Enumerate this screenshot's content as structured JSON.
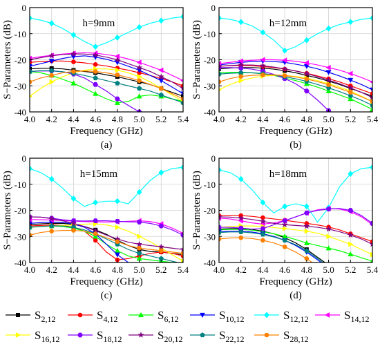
{
  "figure": {
    "ylabel": "S−Parameters (dB)",
    "xlabel": "Frequency (GHz)"
  },
  "legend": [
    {
      "base": "S",
      "sub": "2,12",
      "color": "#000000",
      "marker": "square"
    },
    {
      "base": "S",
      "sub": "4,12",
      "color": "#ff0000",
      "marker": "circle"
    },
    {
      "base": "S",
      "sub": "6,12",
      "color": "#00ff00",
      "marker": "triangle-up"
    },
    {
      "base": "S",
      "sub": "10,12",
      "color": "#0000ff",
      "marker": "triangle-down"
    },
    {
      "base": "S",
      "sub": "12,12",
      "color": "#00ffff",
      "marker": "diamond"
    },
    {
      "base": "S",
      "sub": "14,12",
      "color": "#ff00ff",
      "marker": "triangle-left"
    },
    {
      "base": "S",
      "sub": "16,12",
      "color": "#ffff00",
      "marker": "triangle-right"
    },
    {
      "base": "S",
      "sub": "18,12",
      "color": "#8000ff",
      "marker": "hexagon"
    },
    {
      "base": "S",
      "sub": "20,12",
      "color": "#800080",
      "marker": "star"
    },
    {
      "base": "S",
      "sub": "22,12",
      "color": "#008080",
      "marker": "pentagon"
    },
    {
      "base": "S",
      "sub": "28,12",
      "color": "#ff8000",
      "marker": "circle"
    }
  ],
  "chart_data": [
    {
      "type": "line",
      "panel": "(a)",
      "annotation": "h=9mm",
      "xlabel": "Frequency (GHz)",
      "ylabel": "S−Parameters (dB)",
      "xlim": [
        4.0,
        5.4
      ],
      "ylim": [
        -40,
        0
      ],
      "grid": true,
      "xticks": [
        4.0,
        4.2,
        4.4,
        4.6,
        4.8,
        5.0,
        5.2,
        5.4
      ],
      "yticks": [
        0,
        -10,
        -20,
        -30,
        -40
      ],
      "x": [
        4.0,
        4.1,
        4.2,
        4.3,
        4.4,
        4.5,
        4.6,
        4.7,
        4.8,
        4.9,
        5.0,
        5.1,
        5.2,
        5.3,
        5.4
      ],
      "series": [
        {
          "name": "S2,12",
          "values": [
            -23.5,
            -23.3,
            -23.3,
            -23.5,
            -24,
            -24.5,
            -25,
            -25.8,
            -26.5,
            -27.5,
            -28.5,
            -29.5,
            -31,
            -32.5,
            -34
          ]
        },
        {
          "name": "S4,12",
          "values": [
            -21,
            -20.7,
            -20.5,
            -20.5,
            -20.8,
            -21.2,
            -21.8,
            -22.4,
            -23.2,
            -24,
            -25,
            -26,
            -27.2,
            -28.5,
            -30
          ]
        },
        {
          "name": "S6,12",
          "values": [
            -24.5,
            -25,
            -26,
            -27.5,
            -29,
            -31,
            -33,
            -35,
            -36.5,
            -36,
            -34,
            -33.5,
            -34,
            -35,
            -36
          ]
        },
        {
          "name": "S10,12",
          "values": [
            -22.5,
            -21.5,
            -20.5,
            -19.5,
            -18.8,
            -18.5,
            -19,
            -19.8,
            -21,
            -22.5,
            -24,
            -26,
            -28,
            -30.5,
            -33
          ]
        },
        {
          "name": "S12,12",
          "values": [
            -4,
            -4.8,
            -6,
            -8,
            -10.5,
            -13,
            -15,
            -13.5,
            -11.5,
            -9.5,
            -7.5,
            -6,
            -5,
            -4,
            -3.5
          ]
        },
        {
          "name": "S14,12",
          "values": [
            -19.5,
            -18.8,
            -18.3,
            -17.8,
            -17.5,
            -17.3,
            -17.5,
            -18,
            -18.7,
            -19.7,
            -21,
            -22.5,
            -24,
            -26,
            -28
          ]
        },
        {
          "name": "S16,12",
          "values": [
            -34,
            -31,
            -28.5,
            -26.5,
            -25,
            -24,
            -23.5,
            -23.5,
            -24,
            -25,
            -26.5,
            -28.5,
            -31,
            -33.5,
            -36
          ]
        },
        {
          "name": "S18,12",
          "values": [
            -24.5,
            -24.3,
            -24.3,
            -24.6,
            -25.5,
            -27,
            -29.5,
            -32,
            -35,
            -37.5,
            -40,
            -41,
            -41,
            -41,
            -41
          ]
        },
        {
          "name": "S20,12",
          "values": [
            -20,
            -19.2,
            -18.5,
            -18,
            -17.8,
            -17.8,
            -18.2,
            -19,
            -20,
            -21.5,
            -23,
            -24.5,
            -26.5,
            -28.5,
            -31
          ]
        },
        {
          "name": "S22,12",
          "values": [
            -24.5,
            -24.2,
            -24.2,
            -24.6,
            -25.2,
            -26,
            -27,
            -28,
            -29,
            -30,
            -31,
            -32,
            -33.5,
            -35,
            -36.5
          ]
        },
        {
          "name": "S28,12",
          "values": [
            -28.5,
            -27,
            -26,
            -25,
            -24.5,
            -24.3,
            -24.5,
            -25,
            -25.8,
            -26.8,
            -28,
            -29.5,
            -31,
            -33,
            -35
          ]
        }
      ]
    },
    {
      "type": "line",
      "panel": "(b)",
      "annotation": "h=12mm",
      "xlabel": "Frequency (GHz)",
      "ylabel": "S−Parameters (dB)",
      "xlim": [
        4.0,
        5.4
      ],
      "ylim": [
        -40,
        0
      ],
      "grid": true,
      "xticks": [
        4.0,
        4.2,
        4.4,
        4.6,
        4.8,
        5.0,
        5.2,
        5.4
      ],
      "yticks": [
        0,
        -10,
        -20,
        -30,
        -40
      ],
      "x": [
        4.0,
        4.1,
        4.2,
        4.3,
        4.4,
        4.5,
        4.6,
        4.7,
        4.8,
        4.9,
        5.0,
        5.1,
        5.2,
        5.3,
        5.4
      ],
      "series": [
        {
          "name": "S2,12",
          "values": [
            -23.5,
            -23.2,
            -23,
            -23,
            -23.2,
            -23.6,
            -24.2,
            -25,
            -26,
            -27,
            -28.2,
            -29.5,
            -31,
            -32.5,
            -34
          ]
        },
        {
          "name": "S4,12",
          "values": [
            -22.5,
            -22.3,
            -22.2,
            -22.3,
            -22.6,
            -23,
            -23.6,
            -24.3,
            -25.2,
            -26.2,
            -27.3,
            -28.5,
            -30,
            -31.5,
            -33
          ]
        },
        {
          "name": "S6,12",
          "values": [
            -25,
            -24.8,
            -24.8,
            -25,
            -25.4,
            -26,
            -27,
            -28,
            -29.2,
            -30.5,
            -32,
            -33.5,
            -35,
            -37,
            -39
          ]
        },
        {
          "name": "S10,12",
          "values": [
            -22,
            -21.5,
            -21,
            -20.7,
            -20.5,
            -20.7,
            -21,
            -21.7,
            -22.5,
            -23.5,
            -24.8,
            -26.2,
            -27.8,
            -29.5,
            -31.5
          ]
        },
        {
          "name": "S12,12",
          "values": [
            -4,
            -4.5,
            -5.5,
            -7,
            -9.5,
            -12.5,
            -16.5,
            -15,
            -12.5,
            -10,
            -8,
            -6.5,
            -5.5,
            -4.5,
            -4
          ]
        },
        {
          "name": "S14,12",
          "values": [
            -21.5,
            -21,
            -20.5,
            -20.2,
            -20,
            -20,
            -20.2,
            -20.6,
            -21.2,
            -22,
            -23,
            -24,
            -25.3,
            -26.8,
            -28.5
          ]
        },
        {
          "name": "S16,12",
          "values": [
            -31.5,
            -29.5,
            -28,
            -27,
            -26.3,
            -26,
            -26,
            -26.4,
            -27,
            -28,
            -29.2,
            -30.5,
            -32,
            -34,
            -36
          ]
        },
        {
          "name": "S18,12",
          "values": [
            -23,
            -23,
            -23.2,
            -23.6,
            -24.4,
            -25.6,
            -27.2,
            -29.2,
            -32,
            -35.5,
            -39.5,
            -42,
            -42,
            -42,
            -42
          ]
        },
        {
          "name": "S20,12",
          "values": [
            -22.5,
            -22.2,
            -22,
            -22,
            -22.3,
            -22.8,
            -23.5,
            -24.3,
            -25.3,
            -26.5,
            -27.8,
            -29.2,
            -30.8,
            -32.5,
            -34.5
          ]
        },
        {
          "name": "S22,12",
          "values": [
            -25.5,
            -25.2,
            -25,
            -25,
            -25.3,
            -25.8,
            -26.5,
            -27.3,
            -28.3,
            -29.5,
            -30.8,
            -32.2,
            -33.8,
            -35.5,
            -37.5
          ]
        },
        {
          "name": "S28,12",
          "values": [
            -28.5,
            -27.2,
            -26.4,
            -26,
            -25.8,
            -25.8,
            -26.1,
            -26.6,
            -27.4,
            -28.4,
            -29.6,
            -31,
            -32.5,
            -34.2,
            -36
          ]
        }
      ]
    },
    {
      "type": "line",
      "panel": "(c)",
      "annotation": "h=15mm",
      "xlabel": "Frequency (GHz)",
      "ylabel": "S−Parameters (dB)",
      "xlim": [
        4.0,
        5.4
      ],
      "ylim": [
        -40,
        0
      ],
      "grid": true,
      "xticks": [
        4.0,
        4.2,
        4.4,
        4.6,
        4.8,
        5.0,
        5.2,
        5.4
      ],
      "yticks": [
        0,
        -10,
        -20,
        -30,
        -40
      ],
      "x": [
        4.0,
        4.1,
        4.2,
        4.3,
        4.4,
        4.5,
        4.6,
        4.7,
        4.8,
        4.9,
        5.0,
        5.1,
        5.2,
        5.3,
        5.4
      ],
      "series": [
        {
          "name": "S2,12",
          "values": [
            -25.5,
            -25.2,
            -25,
            -25,
            -25.4,
            -26.2,
            -27.5,
            -29.2,
            -31.5,
            -33.5,
            -35,
            -35.8,
            -36,
            -36.5,
            -37
          ]
        },
        {
          "name": "S4,12",
          "values": [
            -26,
            -25.8,
            -25.6,
            -25.8,
            -26.5,
            -28,
            -31.5,
            -36,
            -39,
            -38.5,
            -37.5,
            -36.5,
            -36,
            -36.5,
            -37.5
          ]
        },
        {
          "name": "S6,12",
          "values": [
            -26.5,
            -26.2,
            -26,
            -26.2,
            -26.8,
            -28,
            -30,
            -33,
            -35.5,
            -37.5,
            -38.5,
            -39,
            -39.5,
            -40,
            -40.5
          ]
        },
        {
          "name": "S10,12",
          "values": [
            -25,
            -24.7,
            -24.5,
            -24.6,
            -25.2,
            -26.5,
            -29,
            -33,
            -37,
            -40,
            -41.5,
            -42,
            -42,
            -42,
            -42
          ]
        },
        {
          "name": "S12,12",
          "values": [
            -4,
            -5.5,
            -8,
            -11.5,
            -15.5,
            -18.5,
            -17,
            -16.5,
            -16.5,
            -17.5,
            -13,
            -8.5,
            -5.5,
            -4,
            -3.5
          ]
        },
        {
          "name": "S14,12",
          "values": [
            -23.5,
            -23.6,
            -23.7,
            -23.9,
            -24.1,
            -24.3,
            -24.4,
            -24.5,
            -24.4,
            -24.2,
            -24,
            -24.3,
            -25.2,
            -26.8,
            -28.8
          ]
        },
        {
          "name": "S16,12",
          "values": [
            -26.5,
            -26.2,
            -26,
            -25.8,
            -25.6,
            -25.3,
            -25.2,
            -25.6,
            -26.5,
            -28,
            -30,
            -32,
            -34.5,
            -37,
            -39.5
          ]
        },
        {
          "name": "S18,12",
          "values": [
            -22.5,
            -22.6,
            -23,
            -23.6,
            -24,
            -24.1,
            -24,
            -24,
            -24.2,
            -24.4,
            -24.5,
            -25,
            -26,
            -27.5,
            -29.5
          ]
        },
        {
          "name": "S20,12",
          "values": [
            -22.5,
            -22.6,
            -23.2,
            -24,
            -25,
            -26.2,
            -27.8,
            -29.5,
            -31,
            -32.2,
            -33,
            -33.5,
            -34,
            -34.5,
            -35
          ]
        },
        {
          "name": "S22,12",
          "values": [
            -26.5,
            -26.2,
            -26,
            -26,
            -26.5,
            -27.5,
            -29,
            -31,
            -33,
            -35,
            -36.5,
            -37.5,
            -38.5,
            -39.5,
            -40.5
          ]
        },
        {
          "name": "S28,12",
          "values": [
            -29.5,
            -28.5,
            -28,
            -27.7,
            -27.7,
            -28,
            -29,
            -30.5,
            -32,
            -33.5,
            -34.5,
            -35,
            -35.5,
            -36,
            -36.5
          ]
        }
      ]
    },
    {
      "type": "line",
      "panel": "(d)",
      "annotation": "h=18mm",
      "xlabel": "Frequency (GHz)",
      "ylabel": "S−Parameters (dB)",
      "xlim": [
        4.0,
        5.4
      ],
      "ylim": [
        -40,
        0
      ],
      "grid": true,
      "xticks": [
        4.0,
        4.2,
        4.4,
        4.6,
        4.8,
        5.0,
        5.2,
        5.4
      ],
      "yticks": [
        0,
        -10,
        -20,
        -30,
        -40
      ],
      "x": [
        4.0,
        4.1,
        4.2,
        4.3,
        4.4,
        4.5,
        4.6,
        4.7,
        4.8,
        4.9,
        5.0,
        5.1,
        5.2,
        5.3,
        5.4
      ],
      "series": [
        {
          "name": "S2,12",
          "values": [
            -27.2,
            -27,
            -27,
            -27.3,
            -28,
            -29,
            -30.5,
            -32.5,
            -35,
            -38,
            -41,
            -42,
            -42,
            -42,
            -42
          ]
        },
        {
          "name": "S4,12",
          "values": [
            -22,
            -21.9,
            -22,
            -22.3,
            -22.8,
            -23.3,
            -23.8,
            -24.4,
            -25,
            -25.6,
            -26.4,
            -27.5,
            -29,
            -30.5,
            -32
          ]
        },
        {
          "name": "S6,12",
          "values": [
            -27.5,
            -27.3,
            -27.3,
            -27.6,
            -28.2,
            -29,
            -30,
            -31.2,
            -32.5,
            -33.5,
            -34.5,
            -35.5,
            -36.8,
            -38.2,
            -39.5
          ]
        },
        {
          "name": "S10,12",
          "values": [
            -28.2,
            -28,
            -28,
            -28.3,
            -29,
            -30,
            -31.5,
            -33.5,
            -36,
            -39,
            -42,
            -42,
            -42,
            -42,
            -42
          ]
        },
        {
          "name": "S12,12",
          "values": [
            -4.5,
            -5.5,
            -8,
            -12,
            -17,
            -21,
            -18.5,
            -17.5,
            -18.5,
            -24.5,
            -19,
            -11,
            -6,
            -4,
            -3.5
          ]
        },
        {
          "name": "S14,12",
          "values": [
            -23,
            -23.3,
            -24,
            -24.8,
            -25.3,
            -24.8,
            -24,
            -22.5,
            -21,
            -19.8,
            -19.3,
            -19.5,
            -20.5,
            -22.5,
            -25.5
          ]
        },
        {
          "name": "S16,12",
          "values": [
            -26.5,
            -26.2,
            -26,
            -26,
            -26.2,
            -26.6,
            -27,
            -27.5,
            -28,
            -28.8,
            -30,
            -31.5,
            -33,
            -35,
            -37
          ]
        },
        {
          "name": "S18,12",
          "values": [
            -26.5,
            -26.5,
            -26.8,
            -27.2,
            -27,
            -25.5,
            -24,
            -22.5,
            -21,
            -20,
            -19.5,
            -19.3,
            -20,
            -22,
            -25
          ]
        },
        {
          "name": "S20,12",
          "values": [
            -22.5,
            -22.6,
            -23,
            -23.5,
            -24.2,
            -25,
            -25.5,
            -25.8,
            -26.1,
            -26.5,
            -27.2,
            -28.2,
            -29.5,
            -31,
            -33
          ]
        },
        {
          "name": "S22,12",
          "values": [
            -28.5,
            -28.3,
            -28.3,
            -28.6,
            -29.2,
            -30.2,
            -31.5,
            -33.2,
            -35.5,
            -38.5,
            -41.5,
            -42,
            -42,
            -42,
            -42
          ]
        },
        {
          "name": "S28,12",
          "values": [
            -31,
            -30.6,
            -30.5,
            -30.8,
            -31.5,
            -32.5,
            -34,
            -36,
            -38.5,
            -41.5,
            -42,
            -42,
            -42,
            -42,
            -42
          ]
        }
      ]
    }
  ]
}
